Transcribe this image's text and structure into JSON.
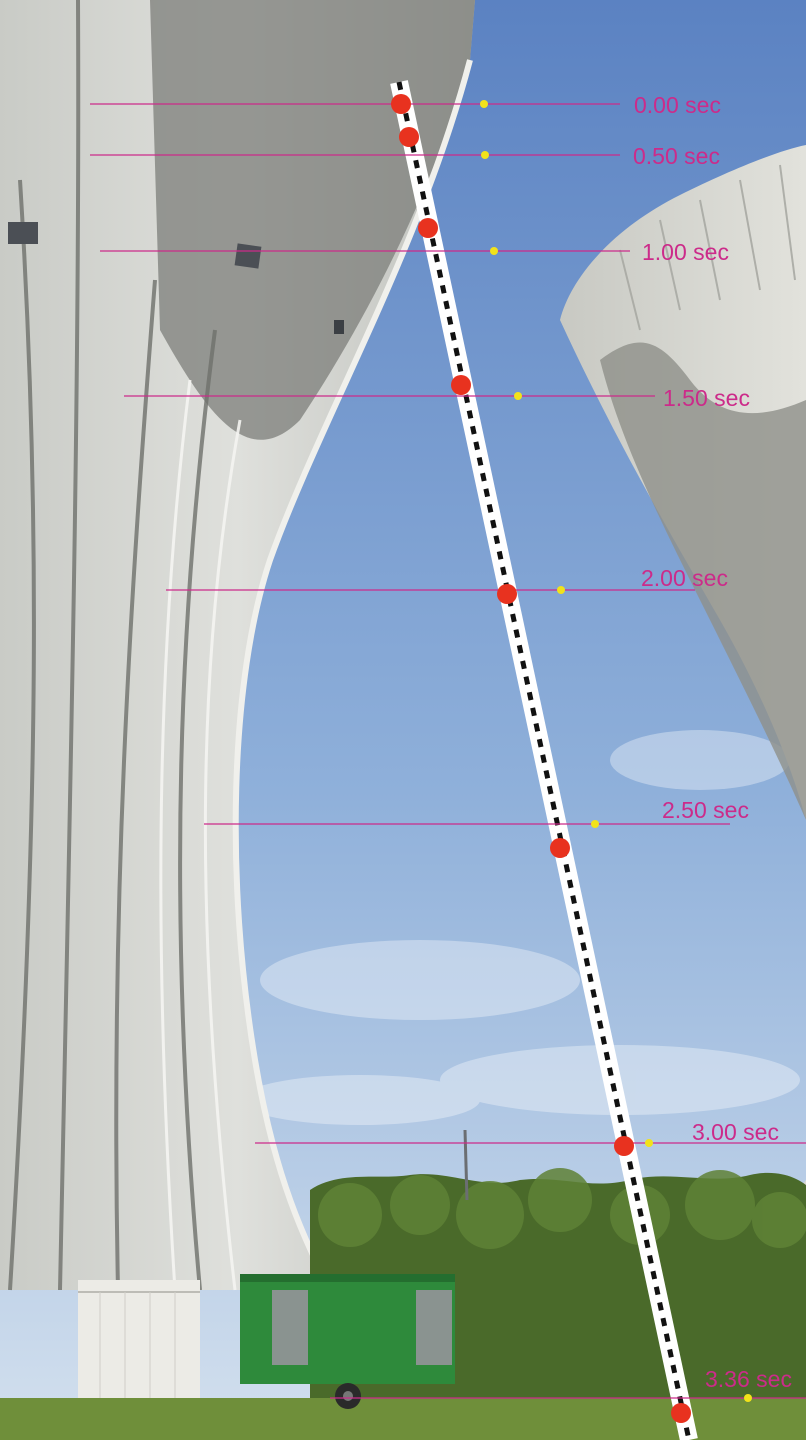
{
  "colors": {
    "sky_top": "#5f86c4",
    "sky_bottom": "#c9d9ec",
    "concrete_light": "#d6d7d2",
    "concrete_shadow": "#8d8f8a",
    "grass": "#7a9a3e",
    "trees": "#4c6b2c",
    "cabin_green": "#2f8a3a",
    "marker_line": "#cc2b8a",
    "label_text": "#cc2b8a",
    "ball_red": "#e8321f",
    "reference_dot": "#f2e21a",
    "track_white": "#ffffff",
    "track_dash": "#111111"
  },
  "time_markers": [
    {
      "label": "0.00 sec",
      "time": 0.0
    },
    {
      "label": "0.50 sec",
      "time": 0.5
    },
    {
      "label": "1.00 sec",
      "time": 1.0
    },
    {
      "label": "1.50 sec",
      "time": 1.5
    },
    {
      "label": "2.00 sec",
      "time": 2.0
    },
    {
      "label": "2.50 sec",
      "time": 2.5
    },
    {
      "label": "3.00 sec",
      "time": 3.0
    },
    {
      "label": "3.36 sec",
      "time": 3.36
    }
  ]
}
